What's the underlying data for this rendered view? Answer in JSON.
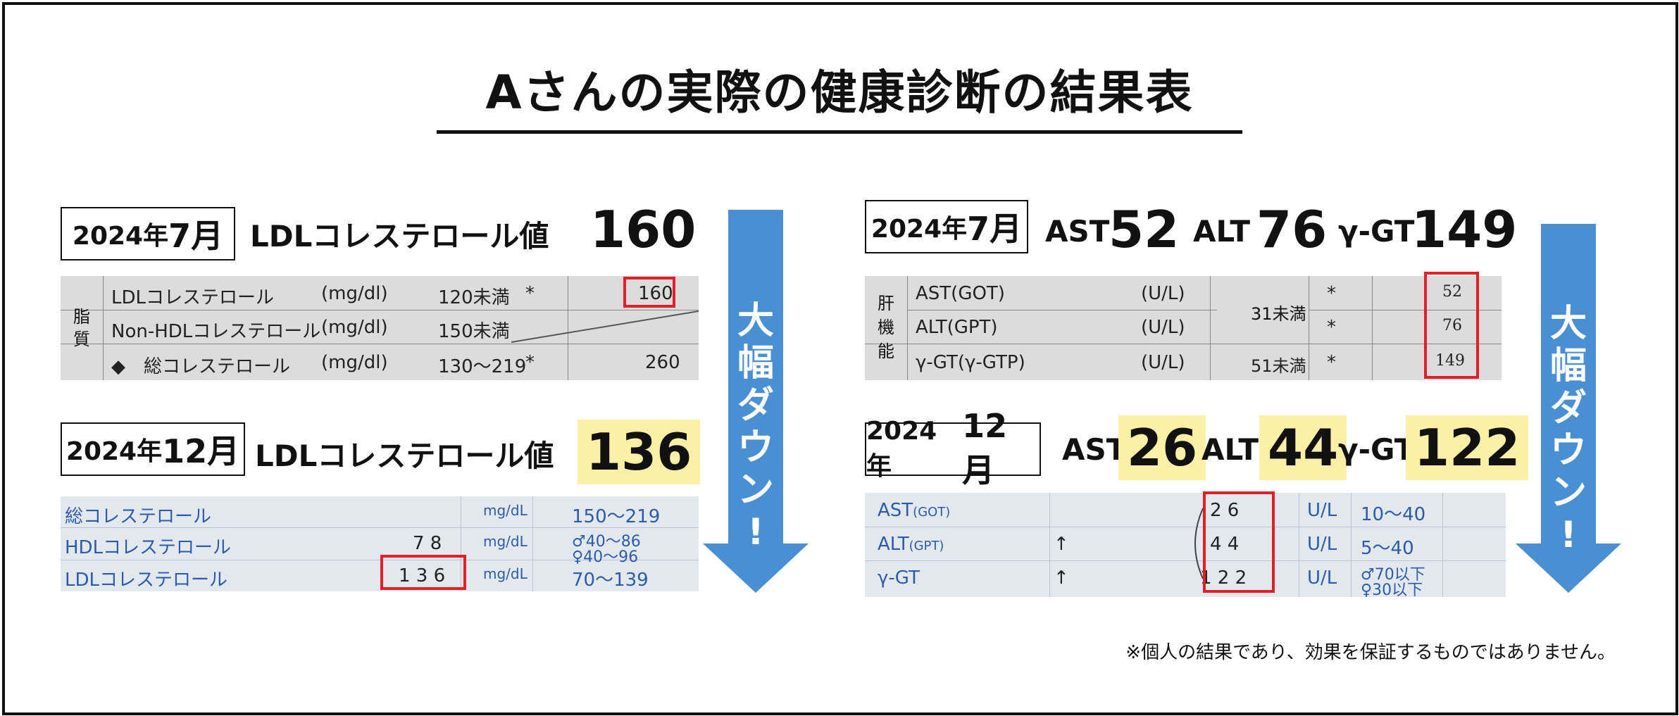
{
  "title": "Aさんの実際の健康診断の結果表",
  "note": "※個人の結果であり、効果を保証するものではありません。",
  "arrow_text": [
    "大",
    "幅",
    "ダ",
    "ウ",
    "ン",
    "!"
  ],
  "colors": {
    "highlight": "#fbf0a6",
    "arrow": "#4a8fd4",
    "red_box": "#e21f26"
  },
  "left": {
    "before": {
      "year": "2024年",
      "month": "7月",
      "label": "LDLコレステロール値",
      "value": "160"
    },
    "after": {
      "year": "2024年",
      "month": "12月",
      "label": "LDLコレステロール値",
      "value": "136"
    },
    "scan_before": {
      "group": "脂質",
      "rows": [
        {
          "name": "LDLコレステロール",
          "unit": "(mg/dl)",
          "range": "120未満",
          "mark": "*",
          "value": "160"
        },
        {
          "name": "Non-HDLコレステロール",
          "unit": "(mg/dl)",
          "range": "150未満",
          "mark": "",
          "value": ""
        },
        {
          "name": "◆　総コレステロール",
          "unit": "(mg/dl)",
          "range": "130〜219",
          "mark": "*",
          "value": "260"
        }
      ]
    },
    "scan_after": {
      "rows": [
        {
          "name": "総コレステロール",
          "value": "",
          "unit": "mg/dL",
          "range": "150〜219",
          "range2": ""
        },
        {
          "name": "HDLコレステロール",
          "value": "7 8",
          "unit": "mg/dL",
          "range": "♂40〜86",
          "range2": "♀40〜96"
        },
        {
          "name": "LDLコレステロール",
          "value": "1 3 6",
          "unit": "mg/dL",
          "range": "70〜139",
          "range2": ""
        }
      ]
    }
  },
  "right": {
    "before": {
      "year": "2024年",
      "month": "7月",
      "ast_label": "AST",
      "ast": "52",
      "alt_label": "ALT",
      "alt": "76",
      "ggt_label": "γ-GT",
      "ggt": "149"
    },
    "after": {
      "year": "2024年",
      "month": "12月",
      "ast_label": "AST",
      "ast": "26",
      "alt_label": "ALT",
      "alt": "44",
      "ggt_label": "γ-GT",
      "ggt": "122"
    },
    "scan_before": {
      "group": "肝機能",
      "rows": [
        {
          "name": "AST(GOT)",
          "unit": "(U/L)",
          "range": "31未満",
          "mark": "*",
          "value": "52"
        },
        {
          "name": "ALT(GPT)",
          "unit": "(U/L)",
          "range": "",
          "mark": "*",
          "value": "76"
        },
        {
          "name": "γ-GT(γ-GTP)",
          "unit": "(U/L)",
          "range": "51未満",
          "mark": "*",
          "value": "149"
        }
      ]
    },
    "scan_after": {
      "rows": [
        {
          "name": "AST",
          "sub": "(GOT)",
          "flag": "",
          "value": "2 6",
          "unit": "U/L",
          "range": "10〜40",
          "range2": ""
        },
        {
          "name": "ALT",
          "sub": "(GPT)",
          "flag": "↑",
          "value": "4 4",
          "unit": "U/L",
          "range": "5〜40",
          "range2": ""
        },
        {
          "name": "γ-GT",
          "sub": "",
          "flag": "↑",
          "value": "1 2 2",
          "unit": "U/L",
          "range": "♂70以下",
          "range2": "♀30以下"
        }
      ]
    }
  }
}
